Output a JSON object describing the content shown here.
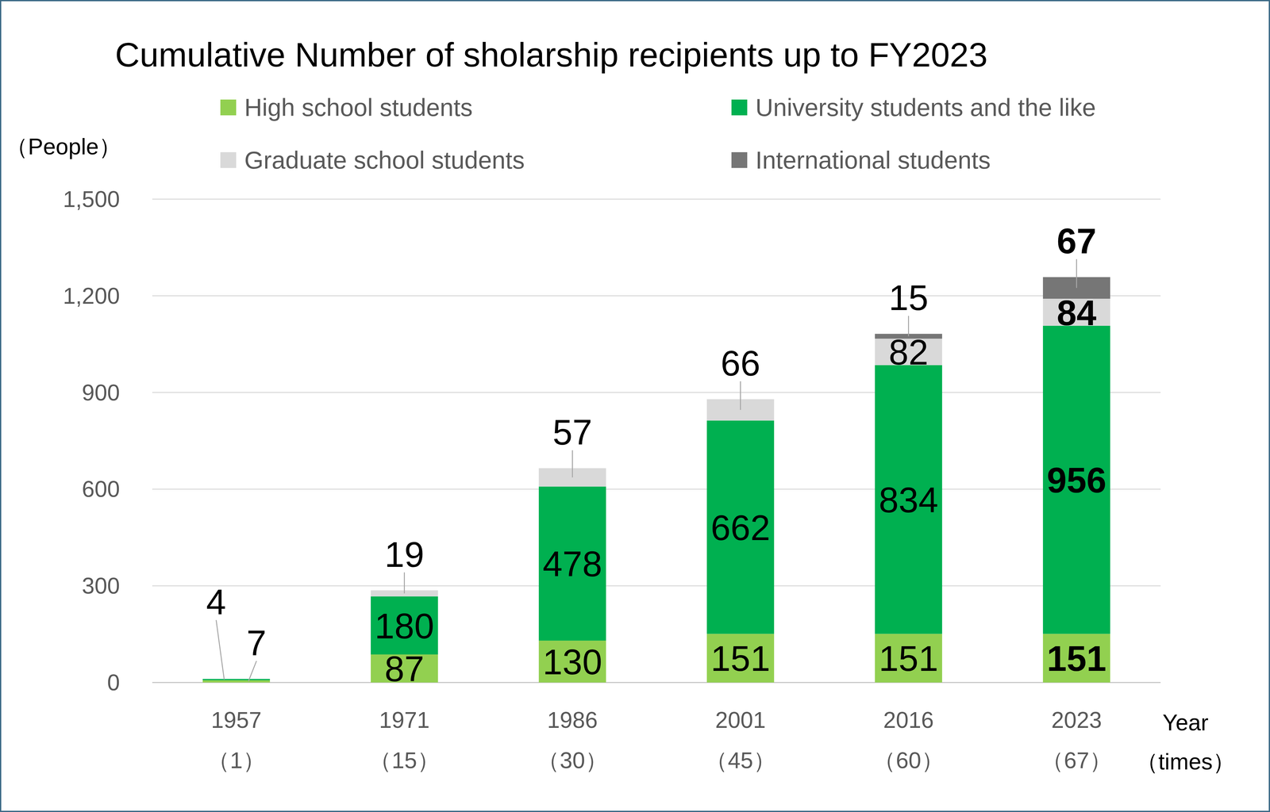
{
  "chart_data": {
    "type": "bar",
    "title": "Cumulative Number of sholarship recipients up to FY2023",
    "stacked": true,
    "data_labels": true,
    "grid": true,
    "y_label": "（People）",
    "x_label": "Year\n（times）",
    "categories": [
      "1957\n（1）",
      "1971\n（15）",
      "1986\n（30）",
      "2001\n（45）",
      "2016\n（60）",
      "2023\n（67）"
    ],
    "ylim": [
      0,
      1500
    ],
    "yticks": [
      0,
      300,
      600,
      900,
      {
        "value": 1200,
        "label": "1,200"
      },
      {
        "value": 1500,
        "label": "1,500"
      }
    ],
    "series": [
      {
        "name": "High school students",
        "color": "#92d050",
        "values": [
          7,
          87,
          130,
          151,
          151,
          151
        ]
      },
      {
        "name": "University students and the like",
        "color": "#00b050",
        "values": [
          4,
          180,
          478,
          662,
          834,
          956
        ]
      },
      {
        "name": "Graduate school students",
        "color": "#d9d9d9",
        "values": [
          null,
          19,
          57,
          66,
          82,
          84
        ]
      },
      {
        "name": "International students",
        "color": "#767676",
        "values": [
          null,
          null,
          null,
          null,
          15,
          67
        ]
      }
    ]
  }
}
